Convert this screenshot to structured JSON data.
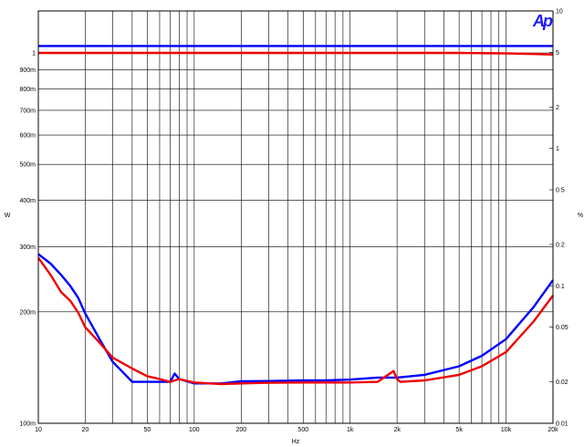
{
  "logo": "Ap",
  "chart_data": {
    "type": "line",
    "xlabel": "Hz",
    "ylabel_left": "W",
    "ylabel_right": "%",
    "x_scale": "log",
    "y_scale": "log",
    "xlim": [
      10,
      20000
    ],
    "ylim_left": [
      0.1,
      1.0
    ],
    "ylim_right": [
      0.01,
      10
    ],
    "grid": true,
    "x_ticks": [
      {
        "v": 10,
        "label": "10"
      },
      {
        "v": 20,
        "label": "20"
      },
      {
        "v": 50,
        "label": "50"
      },
      {
        "v": 100,
        "label": "100"
      },
      {
        "v": 200,
        "label": "200"
      },
      {
        "v": 500,
        "label": "500"
      },
      {
        "v": 1000,
        "label": "1k"
      },
      {
        "v": 2000,
        "label": "2k"
      },
      {
        "v": 5000,
        "label": "5k"
      },
      {
        "v": 10000,
        "label": "10k"
      },
      {
        "v": 20000,
        "label": "20k"
      }
    ],
    "x_minor": [
      30,
      40,
      60,
      70,
      80,
      90,
      300,
      400,
      600,
      700,
      800,
      900,
      3000,
      4000,
      6000,
      7000,
      8000,
      9000
    ],
    "y_left_ticks": [
      {
        "v": 0.1,
        "label": "100m"
      },
      {
        "v": 0.2,
        "label": "200m"
      },
      {
        "v": 0.3,
        "label": "300m"
      },
      {
        "v": 0.4,
        "label": "400m"
      },
      {
        "v": 0.5,
        "label": "500m"
      },
      {
        "v": 0.6,
        "label": "600m"
      },
      {
        "v": 0.7,
        "label": "700m"
      },
      {
        "v": 0.8,
        "label": "800m"
      },
      {
        "v": 0.9,
        "label": "900m"
      },
      {
        "v": 1.0,
        "label": "1"
      }
    ],
    "y_right_ticks": [
      {
        "v": 0.01,
        "label": "0.01"
      },
      {
        "v": 0.02,
        "label": "0.02"
      },
      {
        "v": 0.05,
        "label": "0.05"
      },
      {
        "v": 0.1,
        "label": "0.1"
      },
      {
        "v": 0.2,
        "label": "0.2"
      },
      {
        "v": 0.5,
        "label": "0.5"
      },
      {
        "v": 1,
        "label": "1"
      },
      {
        "v": 2,
        "label": "2"
      },
      {
        "v": 5,
        "label": "5"
      },
      {
        "v": 10,
        "label": "10"
      }
    ],
    "series": [
      {
        "axis": "left",
        "color": "#0000ff",
        "x": [
          10,
          20000
        ],
        "y": [
          1.044,
          1.044
        ]
      },
      {
        "axis": "left",
        "color": "#ee0000",
        "x": [
          10,
          5000,
          10000,
          15000,
          20000
        ],
        "y": [
          1.0,
          1.0,
          0.997,
          0.993,
          0.99
        ]
      },
      {
        "axis": "right",
        "color": "#0000ff",
        "x": [
          10,
          12,
          14,
          16,
          18,
          20,
          25,
          30,
          40,
          50,
          60,
          70,
          75,
          80,
          100,
          150,
          200,
          300,
          500,
          700,
          1000,
          1500,
          2000,
          3000,
          5000,
          7000,
          10000,
          15000,
          20000
        ],
        "y": [
          0.17,
          0.145,
          0.12,
          0.1,
          0.082,
          0.063,
          0.04,
          0.028,
          0.02,
          0.02,
          0.02,
          0.02,
          0.023,
          0.021,
          0.0195,
          0.0195,
          0.0202,
          0.0203,
          0.0205,
          0.0205,
          0.0208,
          0.0215,
          0.0215,
          0.0225,
          0.026,
          0.031,
          0.041,
          0.07,
          0.11
        ]
      },
      {
        "axis": "right",
        "color": "#ee0000",
        "x": [
          10,
          12,
          14,
          16,
          18,
          20,
          25,
          30,
          40,
          50,
          60,
          70,
          80,
          100,
          150,
          200,
          300,
          500,
          700,
          1000,
          1500,
          1900,
          2000,
          2100,
          3000,
          5000,
          7000,
          10000,
          15000,
          20000
        ],
        "y": [
          0.16,
          0.12,
          0.09,
          0.078,
          0.064,
          0.05,
          0.038,
          0.03,
          0.025,
          0.022,
          0.021,
          0.02,
          0.021,
          0.0198,
          0.0193,
          0.0195,
          0.0197,
          0.0198,
          0.0198,
          0.0198,
          0.02,
          0.024,
          0.021,
          0.02,
          0.0205,
          0.0225,
          0.026,
          0.033,
          0.055,
          0.085
        ]
      }
    ]
  }
}
